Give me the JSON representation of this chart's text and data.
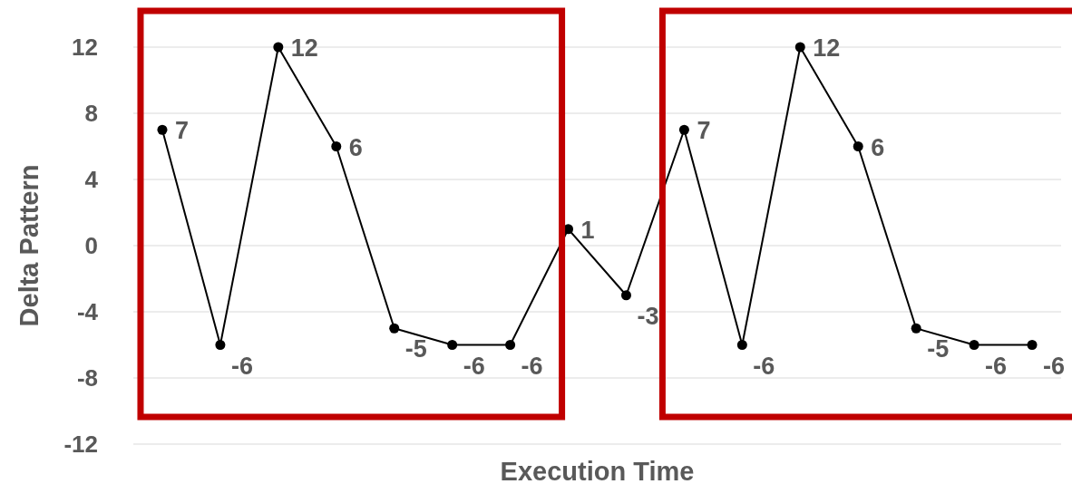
{
  "chart_data": {
    "type": "line",
    "xlabel": "Execution Time",
    "ylabel": "Delta Pattern",
    "categories": [
      null,
      null,
      null,
      null,
      null,
      null,
      null,
      null,
      null,
      null,
      null,
      null,
      null,
      null,
      null,
      null
    ],
    "series": [
      {
        "color": "#000000",
        "values": [
          7,
          -6,
          12,
          6,
          -5,
          -6,
          -6,
          1,
          -3,
          7,
          -6,
          12,
          6,
          -5,
          -6,
          -6
        ]
      }
    ],
    "ylim": [
      -12,
      12
    ],
    "yticks": [
      -12,
      -8,
      -4,
      0,
      4,
      8,
      12
    ],
    "grid": "y",
    "data_labels": true,
    "marker": "circle",
    "line_style": "solid"
  }
}
